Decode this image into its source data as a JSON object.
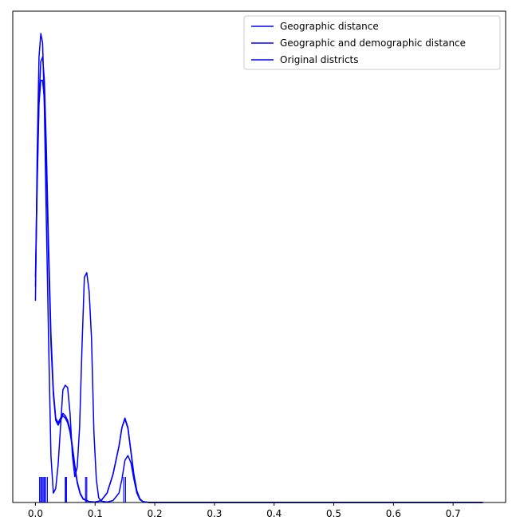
{
  "chart_data": {
    "type": "line",
    "title": "",
    "xlabel": "",
    "ylabel": "",
    "xlim": [
      -0.038,
      0.788
    ],
    "ylim": [
      0,
      1.0
    ],
    "x_ticks": [
      0.0,
      0.1,
      0.2,
      0.3,
      0.4,
      0.5,
      0.6,
      0.7
    ],
    "x_tick_labels": [
      "0.0",
      "0.1",
      "0.2",
      "0.3",
      "0.4",
      "0.5",
      "0.6",
      "0.7"
    ],
    "y_ticks_shown": false,
    "grid": false,
    "legend_placement": "top-right",
    "series": [
      {
        "name": "Geographic distance",
        "color": "#0000ff",
        "x": [
          0.0,
          0.003,
          0.006,
          0.009,
          0.012,
          0.015,
          0.018,
          0.022,
          0.026,
          0.03,
          0.034,
          0.038,
          0.042,
          0.046,
          0.05,
          0.054,
          0.058,
          0.062,
          0.066,
          0.07,
          0.075,
          0.08,
          0.09,
          0.1,
          0.11,
          0.12,
          0.13,
          0.14,
          0.145,
          0.15,
          0.155,
          0.16,
          0.165,
          0.17,
          0.175,
          0.18,
          0.19,
          0.2,
          0.3,
          0.4,
          0.5,
          0.6,
          0.7,
          0.75
        ],
        "y": [
          0.48,
          0.7,
          0.86,
          0.94,
          0.95,
          0.9,
          0.77,
          0.55,
          0.36,
          0.24,
          0.18,
          0.17,
          0.18,
          0.19,
          0.185,
          0.175,
          0.155,
          0.12,
          0.08,
          0.045,
          0.02,
          0.008,
          0.002,
          0.001,
          0.004,
          0.02,
          0.06,
          0.12,
          0.16,
          0.18,
          0.16,
          0.11,
          0.06,
          0.025,
          0.008,
          0.002,
          0.0,
          0.0,
          0.0,
          0.0,
          0.0,
          0.0,
          0.0,
          0.0
        ]
      },
      {
        "name": "Geographic and demographic distance",
        "color": "#0000ff",
        "x": [
          0.0,
          0.003,
          0.006,
          0.009,
          0.012,
          0.015,
          0.018,
          0.022,
          0.026,
          0.03,
          0.034,
          0.038,
          0.042,
          0.046,
          0.05,
          0.054,
          0.058,
          0.062,
          0.066,
          0.07,
          0.075,
          0.08,
          0.09,
          0.1,
          0.11,
          0.12,
          0.13,
          0.14,
          0.145,
          0.15,
          0.155,
          0.16,
          0.165,
          0.17,
          0.175,
          0.18,
          0.19,
          0.2,
          0.3,
          0.4,
          0.5,
          0.6,
          0.7,
          0.75
        ],
        "y": [
          0.46,
          0.68,
          0.85,
          0.9,
          0.9,
          0.86,
          0.74,
          0.52,
          0.34,
          0.23,
          0.175,
          0.165,
          0.175,
          0.185,
          0.18,
          0.17,
          0.15,
          0.115,
          0.075,
          0.042,
          0.018,
          0.007,
          0.002,
          0.001,
          0.004,
          0.02,
          0.06,
          0.12,
          0.16,
          0.178,
          0.158,
          0.108,
          0.058,
          0.024,
          0.007,
          0.002,
          0.0,
          0.0,
          0.0,
          0.0,
          0.0,
          0.0,
          0.0,
          0.0
        ]
      },
      {
        "name": "Original districts",
        "color": "#0000ff",
        "x": [
          0.0,
          0.003,
          0.006,
          0.009,
          0.012,
          0.015,
          0.018,
          0.022,
          0.026,
          0.03,
          0.034,
          0.038,
          0.042,
          0.046,
          0.05,
          0.054,
          0.058,
          0.062,
          0.066,
          0.07,
          0.074,
          0.078,
          0.082,
          0.086,
          0.09,
          0.094,
          0.098,
          0.102,
          0.106,
          0.11,
          0.12,
          0.13,
          0.14,
          0.145,
          0.15,
          0.155,
          0.16,
          0.165,
          0.17,
          0.175,
          0.18,
          0.19,
          0.2,
          0.3,
          0.4,
          0.5,
          0.6,
          0.7,
          0.75
        ],
        "y": [
          0.43,
          0.75,
          0.95,
          1.0,
          0.98,
          0.84,
          0.62,
          0.35,
          0.1,
          0.02,
          0.03,
          0.08,
          0.16,
          0.24,
          0.25,
          0.245,
          0.19,
          0.1,
          0.055,
          0.075,
          0.16,
          0.33,
          0.48,
          0.49,
          0.45,
          0.35,
          0.15,
          0.05,
          0.01,
          0.003,
          0.001,
          0.004,
          0.02,
          0.05,
          0.09,
          0.1,
          0.085,
          0.05,
          0.02,
          0.006,
          0.002,
          0.0,
          0.0,
          0.0,
          0.0,
          0.0,
          0.0,
          0.0,
          0.0
        ]
      }
    ],
    "rug_x": [
      0.007,
      0.009,
      0.011,
      0.013,
      0.015,
      0.017,
      0.02,
      0.05,
      0.051,
      0.052,
      0.084,
      0.086,
      0.148,
      0.151
    ]
  }
}
